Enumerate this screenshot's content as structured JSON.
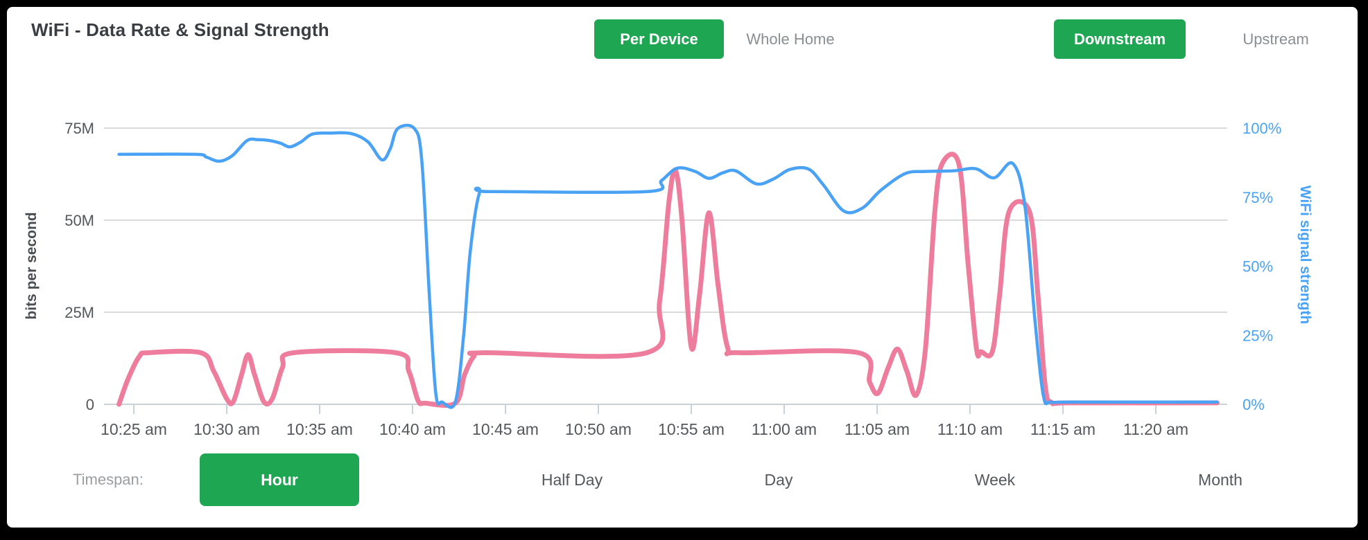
{
  "header": {
    "title": "WiFi - Data Rate & Signal Strength",
    "device_toggle": [
      {
        "label": "Per Device",
        "active": true
      },
      {
        "label": "Whole Home",
        "active": false
      }
    ],
    "stream_toggle": [
      {
        "label": "Downstream",
        "active": true
      },
      {
        "label": "Upstream",
        "active": false
      }
    ]
  },
  "timespan": {
    "label": "Timespan:",
    "options": [
      {
        "label": "Hour",
        "active": true
      },
      {
        "label": "Half Day",
        "active": false
      },
      {
        "label": "Day",
        "active": false
      },
      {
        "label": "Week",
        "active": false
      },
      {
        "label": "Month",
        "active": false
      }
    ]
  },
  "colors": {
    "accent_green": "#1fa653",
    "data_rate_pink": "#ee7d9d",
    "signal_blue": "#4aa2f5",
    "gridline": "#dbdbdb",
    "axis_line": "#c9d2d8",
    "tick_text": "#54575b"
  },
  "chart_data": {
    "type": "line",
    "title": "WiFi - Data Rate & Signal Strength",
    "x_axis": {
      "tick_labels": [
        "10:25 am",
        "10:30 am",
        "10:35 am",
        "10:40 am",
        "10:45 am",
        "10:50 am",
        "10:55 am",
        "11:00 am",
        "11:05 am",
        "11:10 am",
        "11:15 am",
        "11:20 am"
      ],
      "tick_minutes": [
        25,
        30,
        35,
        40,
        45,
        50,
        55,
        60,
        65,
        70,
        75,
        80
      ],
      "time_range_minutes": [
        23.4,
        83.3
      ]
    },
    "left_axis": {
      "label": "bits per second",
      "ticks": [
        "0",
        "25M",
        "50M",
        "75M"
      ],
      "tick_values": [
        0,
        25,
        50,
        75
      ],
      "range": [
        0,
        75000000
      ]
    },
    "right_axis": {
      "label": "WiFi signal strength",
      "ticks": [
        "0%",
        "25%",
        "50%",
        "75%",
        "100%"
      ],
      "tick_values": [
        0,
        25,
        50,
        75,
        100
      ],
      "range": [
        0,
        100
      ]
    },
    "grid": "horizontal-only",
    "series": [
      {
        "name": "data-rate",
        "axis": "left",
        "unit": "Mbit/s",
        "color": "#ee7d9d",
        "stroke_width": 7,
        "points": [
          [
            24.2,
            0
          ],
          [
            24.7,
            7
          ],
          [
            25.3,
            13
          ],
          [
            25.8,
            14
          ],
          [
            28.6,
            14
          ],
          [
            29.3,
            9
          ],
          [
            30.0,
            1.5
          ],
          [
            30.35,
            0.7
          ],
          [
            30.8,
            8
          ],
          [
            31.15,
            13.5
          ],
          [
            31.5,
            8
          ],
          [
            32.0,
            0.7
          ],
          [
            32.45,
            1.5
          ],
          [
            33.0,
            10
          ],
          [
            33.6,
            14
          ],
          [
            39.1,
            14
          ],
          [
            39.8,
            9
          ],
          [
            40.3,
            1
          ],
          [
            40.7,
            0.3
          ],
          [
            42.3,
            0.3
          ],
          [
            42.8,
            8
          ],
          [
            43.3,
            13
          ],
          [
            43.9,
            14
          ],
          [
            52.6,
            14
          ],
          [
            53.3,
            28
          ],
          [
            53.8,
            55
          ],
          [
            54.15,
            63.5
          ],
          [
            54.5,
            50
          ],
          [
            55.0,
            15.5
          ],
          [
            55.45,
            30
          ],
          [
            55.95,
            52
          ],
          [
            56.45,
            32
          ],
          [
            56.95,
            15.5
          ],
          [
            57.6,
            14
          ],
          [
            64.0,
            14
          ],
          [
            64.6,
            6
          ],
          [
            65.05,
            3
          ],
          [
            65.6,
            10
          ],
          [
            66.1,
            15
          ],
          [
            66.6,
            9
          ],
          [
            67.1,
            2.5
          ],
          [
            67.6,
            15
          ],
          [
            68.1,
            52
          ],
          [
            68.5,
            65.3
          ],
          [
            69.4,
            65.3
          ],
          [
            69.9,
            38
          ],
          [
            70.35,
            15
          ],
          [
            70.6,
            14.3
          ],
          [
            71.2,
            14.3
          ],
          [
            71.6,
            30
          ],
          [
            72.1,
            52.3
          ],
          [
            73.2,
            52.3
          ],
          [
            73.65,
            30
          ],
          [
            74.05,
            5
          ],
          [
            74.4,
            0.5
          ],
          [
            75.5,
            0.4
          ],
          [
            83.3,
            0.4
          ]
        ]
      },
      {
        "name": "wifi-signal-strength",
        "axis": "right",
        "unit": "%",
        "color": "#4aa2f5",
        "stroke_width": 4.5,
        "points": [
          [
            24.2,
            90.5
          ],
          [
            28.3,
            90.5
          ],
          [
            28.9,
            89.5
          ],
          [
            29.6,
            88
          ],
          [
            30.3,
            90
          ],
          [
            31.1,
            95.5
          ],
          [
            31.7,
            95.8
          ],
          [
            32.3,
            95.5
          ],
          [
            32.9,
            94.5
          ],
          [
            33.4,
            93.2
          ],
          [
            34.0,
            95
          ],
          [
            34.6,
            97.8
          ],
          [
            35.6,
            98.2
          ],
          [
            36.7,
            98
          ],
          [
            37.6,
            95
          ],
          [
            38.35,
            88.5
          ],
          [
            38.8,
            92.5
          ],
          [
            39.2,
            99.8
          ],
          [
            40.1,
            99.8
          ],
          [
            40.5,
            88
          ],
          [
            40.9,
            40
          ],
          [
            41.25,
            4
          ],
          [
            41.6,
            0.8
          ],
          [
            42.3,
            0.8
          ],
          [
            42.75,
            25
          ],
          [
            43.1,
            55
          ],
          [
            43.6,
            76.5
          ],
          [
            44.2,
            77
          ],
          [
            52.6,
            77
          ],
          [
            53.4,
            81
          ],
          [
            54.25,
            85.5
          ],
          [
            55.2,
            84.3
          ],
          [
            55.95,
            81.8
          ],
          [
            56.7,
            83.8
          ],
          [
            57.4,
            84.5
          ],
          [
            58.5,
            79.8
          ],
          [
            59.4,
            81.5
          ],
          [
            60.3,
            85
          ],
          [
            61.3,
            85.2
          ],
          [
            62.1,
            79.5
          ],
          [
            63.2,
            70
          ],
          [
            64.2,
            71
          ],
          [
            65.2,
            77.5
          ],
          [
            66.5,
            83.5
          ],
          [
            67.6,
            84.3
          ],
          [
            69.1,
            84.5
          ],
          [
            70.3,
            85.3
          ],
          [
            71.3,
            82
          ],
          [
            72.3,
            87.2
          ],
          [
            72.95,
            72
          ],
          [
            73.5,
            30
          ],
          [
            73.95,
            3
          ],
          [
            74.35,
            0.8
          ],
          [
            75.5,
            0.8
          ],
          [
            83.3,
            0.8
          ]
        ]
      }
    ]
  }
}
